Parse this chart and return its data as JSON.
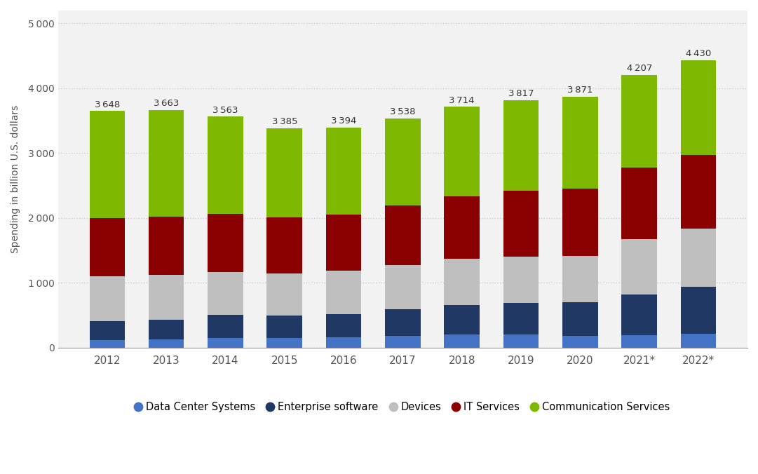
{
  "years": [
    "2012",
    "2013",
    "2014",
    "2015",
    "2016",
    "2017",
    "2018",
    "2019",
    "2020",
    "2021*",
    "2022*"
  ],
  "totals": [
    3648,
    3663,
    3563,
    3385,
    3394,
    3538,
    3714,
    3817,
    3871,
    4207,
    4430
  ],
  "data_center_systems": [
    116,
    121,
    152,
    150,
    158,
    175,
    202,
    205,
    176,
    193,
    212
  ],
  "enterprise_software": [
    296,
    305,
    349,
    348,
    358,
    413,
    454,
    479,
    519,
    628,
    726
  ],
  "devices": [
    690,
    696,
    665,
    647,
    669,
    686,
    714,
    714,
    723,
    852,
    895
  ],
  "it_services": [
    893,
    894,
    896,
    858,
    869,
    914,
    963,
    1025,
    1038,
    1105,
    1136
  ],
  "colors": {
    "data_center_systems": "#4472C4",
    "enterprise_software": "#1F3864",
    "devices": "#BFBFBF",
    "it_services": "#8B0000",
    "communication_services": "#7FB800"
  },
  "ylabel": "Spending in billion U.S. dollars",
  "ylim": [
    0,
    5200
  ],
  "yticks": [
    0,
    1000,
    2000,
    3000,
    4000,
    5000
  ],
  "background_color": "#FFFFFF",
  "plot_bg_color": "#F2F2F2",
  "grid_color": "#CCCCCC",
  "total_label_fontsize": 9.5,
  "legend_labels": [
    "Data Center Systems",
    "Enterprise software",
    "Devices",
    "IT Services",
    "Communication Services"
  ]
}
